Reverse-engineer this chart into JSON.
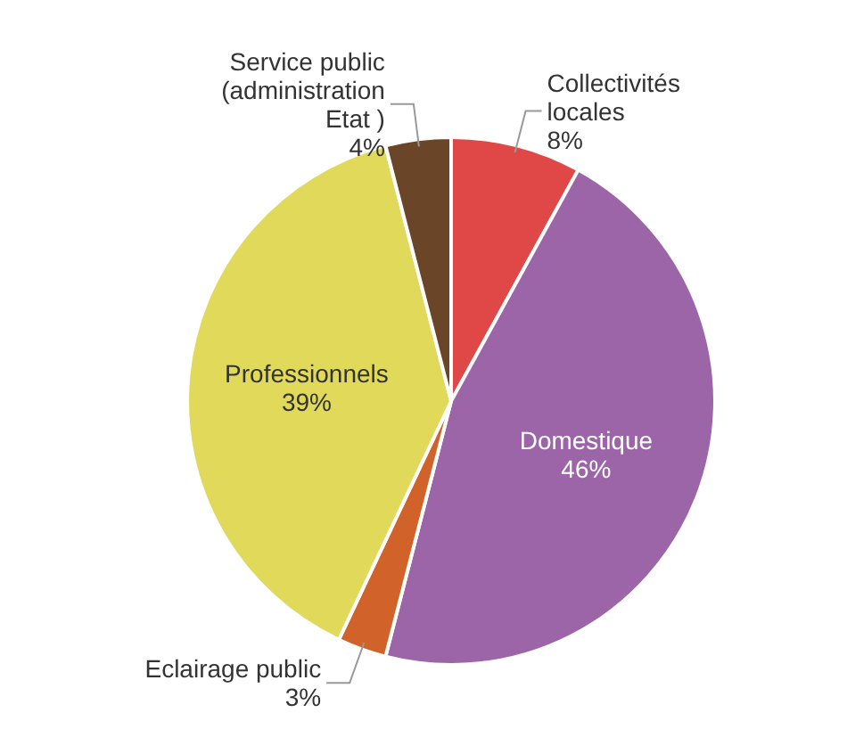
{
  "chart_data": {
    "type": "pie",
    "categories": [
      "Collectivités\nlocales",
      "Domestique",
      "Eclairage public",
      "Professionnels",
      "Service public\n(administration\nEtat )"
    ],
    "values": [
      8,
      46,
      3,
      39,
      4
    ],
    "colors": [
      "#e04848",
      "#9b65a8",
      "#d0622a",
      "#e0d95a",
      "#6b4528"
    ],
    "value_labels": [
      "8%",
      "46%",
      "3%",
      "39%",
      "4%"
    ]
  }
}
